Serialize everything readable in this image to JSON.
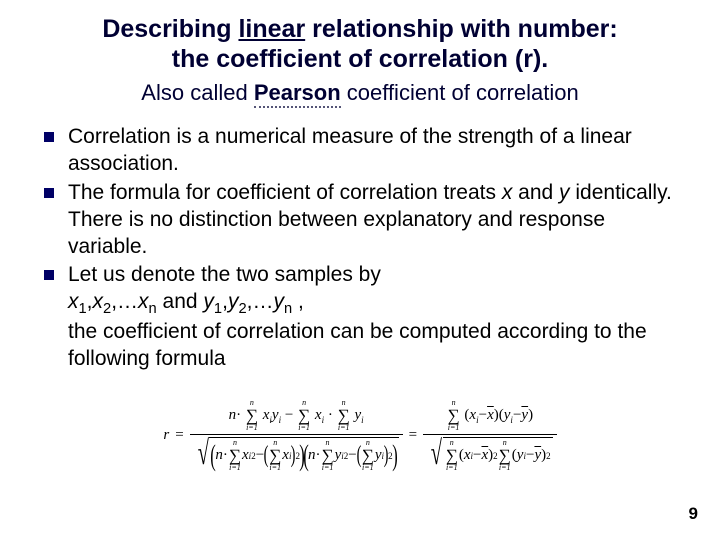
{
  "title_pre": "Describing ",
  "title_underline": "linear",
  "title_post": " relationship with number:",
  "title_line2": "the coefficient of correlation (r).",
  "subtitle_pre": "Also called ",
  "subtitle_pearson": "Pearson",
  "subtitle_post": " coefficient of correlation",
  "b1": "Correlation is a numerical measure of the strength of a linear association.",
  "b2_a": "The formula for coefficient of correlation treats ",
  "b2_x": "x",
  "b2_b": " and ",
  "b2_y": "y",
  "b2_c": " identically. There is no distinction between explanatory and response variable.",
  "b3_a": "Let us denote the two samples by",
  "b3_vars_x": "x",
  "b3_vars_y": "y",
  "b3_comma": ",",
  "b3_dots": "…",
  "b3_and": " and ",
  "b3_tail": " ,",
  "b3_d": "the coefficient of correlation can be computed according to the following formula",
  "pagenum": "9",
  "math": {
    "r": "r",
    "n": "n",
    "x": "x",
    "y": "y",
    "i": "i",
    "eq": "=",
    "dot": "·",
    "minus": "−",
    "sum_top": "n",
    "sum_bot": "i=1",
    "sq": "2"
  }
}
